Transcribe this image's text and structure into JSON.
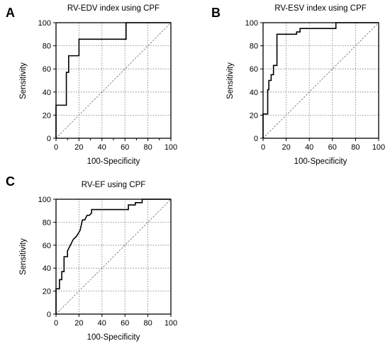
{
  "chart_data": [
    {
      "panel": "A",
      "type": "line",
      "title": "RV-EDV index using CPF",
      "xlabel": "100-Specificity",
      "ylabel": "Sensitivity",
      "xlim": [
        0,
        100
      ],
      "ylim": [
        0,
        100
      ],
      "xticks": [
        "0",
        "10",
        "20",
        "30",
        "40",
        "50",
        "60",
        "70",
        "80",
        "90",
        "100"
      ],
      "yticks": [
        "0",
        "20",
        "40",
        "60",
        "80",
        "100"
      ],
      "xticks_major": [
        "0",
        "20",
        "40",
        "60",
        "80",
        "100"
      ],
      "grid": true,
      "diagonal_reference": true,
      "series": [
        {
          "x": [
            0,
            0,
            9,
            9,
            11,
            11,
            20,
            20,
            61,
            61,
            100
          ],
          "y": [
            0,
            28.6,
            28.6,
            57,
            57,
            71.4,
            71.4,
            85.7,
            85.7,
            100,
            100
          ]
        }
      ]
    },
    {
      "panel": "B",
      "type": "line",
      "title": "RV-ESV index using CPF",
      "xlabel": "100-Specificity",
      "ylabel": "Sensitivity",
      "xlim": [
        0,
        100
      ],
      "ylim": [
        0,
        100
      ],
      "xticks": [
        "0",
        "20",
        "40",
        "60",
        "80",
        "100"
      ],
      "yticks": [
        "0",
        "20",
        "40",
        "60",
        "80",
        "100"
      ],
      "grid": true,
      "diagonal_reference": true,
      "series": [
        {
          "x": [
            0,
            0,
            4,
            4,
            5,
            5,
            7,
            7,
            9,
            9,
            12,
            12,
            29,
            29,
            32,
            32,
            63,
            63,
            100
          ],
          "y": [
            0,
            21,
            21,
            42,
            42,
            50,
            50,
            55,
            55,
            63,
            63,
            90,
            90,
            92,
            92,
            95,
            95,
            100,
            100
          ]
        }
      ]
    },
    {
      "panel": "C",
      "type": "line",
      "title": "RV-EF using CPF",
      "xlabel": "100-Specificity",
      "ylabel": "Sensitivity",
      "xlim": [
        0,
        100
      ],
      "ylim": [
        0,
        100
      ],
      "xticks": [
        "0",
        "20",
        "40",
        "60",
        "80",
        "100"
      ],
      "yticks": [
        "0",
        "20",
        "40",
        "60",
        "80",
        "100"
      ],
      "grid": true,
      "diagonal_reference": true,
      "series": [
        {
          "x": [
            0,
            0,
            3,
            3,
            5,
            5,
            7,
            7,
            10,
            10,
            13,
            15,
            18,
            21,
            23,
            25,
            27,
            29,
            31,
            31,
            63,
            63,
            69,
            69,
            75,
            75,
            100
          ],
          "y": [
            0,
            22,
            22,
            30,
            30,
            37,
            37,
            50,
            50,
            55,
            61,
            65,
            68,
            73,
            82,
            82,
            86,
            86,
            88,
            91,
            91,
            95,
            95,
            97,
            97,
            100,
            100
          ]
        }
      ]
    }
  ]
}
